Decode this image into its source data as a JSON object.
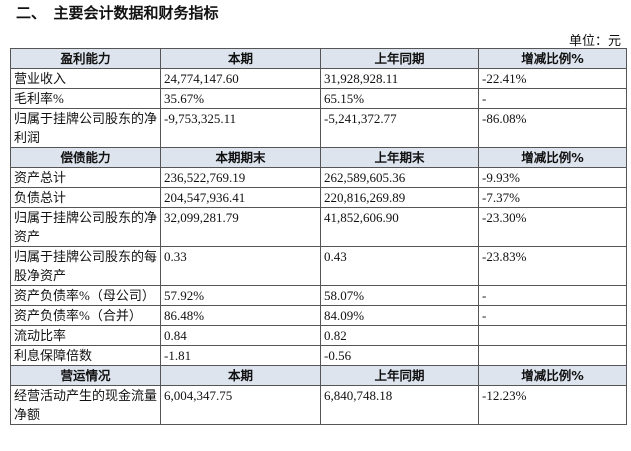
{
  "header": {
    "title": "二、　主要会计数据和财务指标",
    "unit": "单位：元"
  },
  "sections": [
    {
      "header": [
        "盈利能力",
        "本期",
        "上年同期",
        "增减比例%"
      ],
      "rows": [
        [
          "营业收入",
          "24,774,147.60",
          "31,928,928.11",
          "-22.41%"
        ],
        [
          "毛利率%",
          "35.67%",
          "65.15%",
          "-"
        ],
        [
          "归属于挂牌公司股东的净利润",
          "-9,753,325.11",
          "-5,241,372.77",
          "-86.08%"
        ]
      ]
    },
    {
      "header": [
        "偿债能力",
        "本期期末",
        "上年期末",
        "增减比例%"
      ],
      "rows": [
        [
          "资产总计",
          "236,522,769.19",
          "262,589,605.36",
          "-9.93%"
        ],
        [
          "负债总计",
          "204,547,936.41",
          "220,816,269.89",
          "-7.37%"
        ],
        [
          "归属于挂牌公司股东的净资产",
          "32,099,281.79",
          "41,852,606.90",
          "-23.30%"
        ],
        [
          "归属于挂牌公司股东的每股净资产",
          "0.33",
          "0.43",
          "-23.83%"
        ],
        [
          "资产负债率%（母公司）",
          "57.92%",
          "58.07%",
          "-"
        ],
        [
          "资产负债率%（合并）",
          "86.48%",
          "84.09%",
          "-"
        ],
        [
          "流动比率",
          "0.84",
          "0.82"
        ],
        [
          "利息保障倍数",
          "-1.81",
          "-0.56"
        ]
      ]
    },
    {
      "header": [
        "营运情况",
        "本期",
        "上年同期",
        "增减比例%"
      ],
      "rows": [
        [
          "经营活动产生的现金流量净额",
          "6,004,347.75",
          "6,840,748.18",
          "-12.23%"
        ]
      ]
    }
  ]
}
